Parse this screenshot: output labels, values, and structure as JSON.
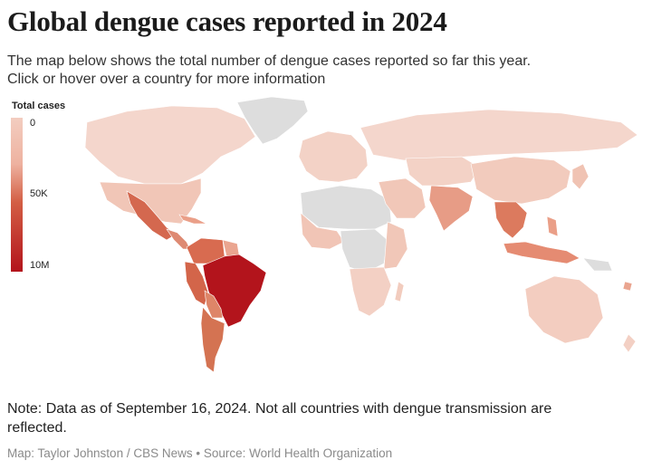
{
  "header": {
    "title": "Global dengue cases reported in 2024",
    "subtitle_line1": "The map below shows the total number of dengue cases reported so far this year.",
    "subtitle_line2": "Click or hover over a country for more information"
  },
  "legend": {
    "title": "Total cases",
    "labels": [
      "0",
      "50K",
      "10M"
    ],
    "colors": [
      "#f3cdc0",
      "#e99a84",
      "#b3141c"
    ]
  },
  "map": {
    "type": "choropleth",
    "projection": "world",
    "no_data_color": "#dddddd",
    "highlighted_regions": [
      {
        "region": "Brazil",
        "level": "10M"
      },
      {
        "region": "Argentina",
        "level": "high"
      },
      {
        "region": "Peru",
        "level": "high"
      },
      {
        "region": "Colombia",
        "level": "high"
      },
      {
        "region": "Mexico",
        "level": "high"
      },
      {
        "region": "Vietnam",
        "level": "medium"
      },
      {
        "region": "Bangladesh",
        "level": "medium"
      },
      {
        "region": "Malaysia",
        "level": "medium"
      }
    ]
  },
  "footer": {
    "note_line1": "Note: Data as of September 16, 2024. Not all countries with dengue transmission are",
    "note_line2": "reflected.",
    "credit": "Map: Taylor Johnston / CBS News • Source: World Health Organization"
  }
}
